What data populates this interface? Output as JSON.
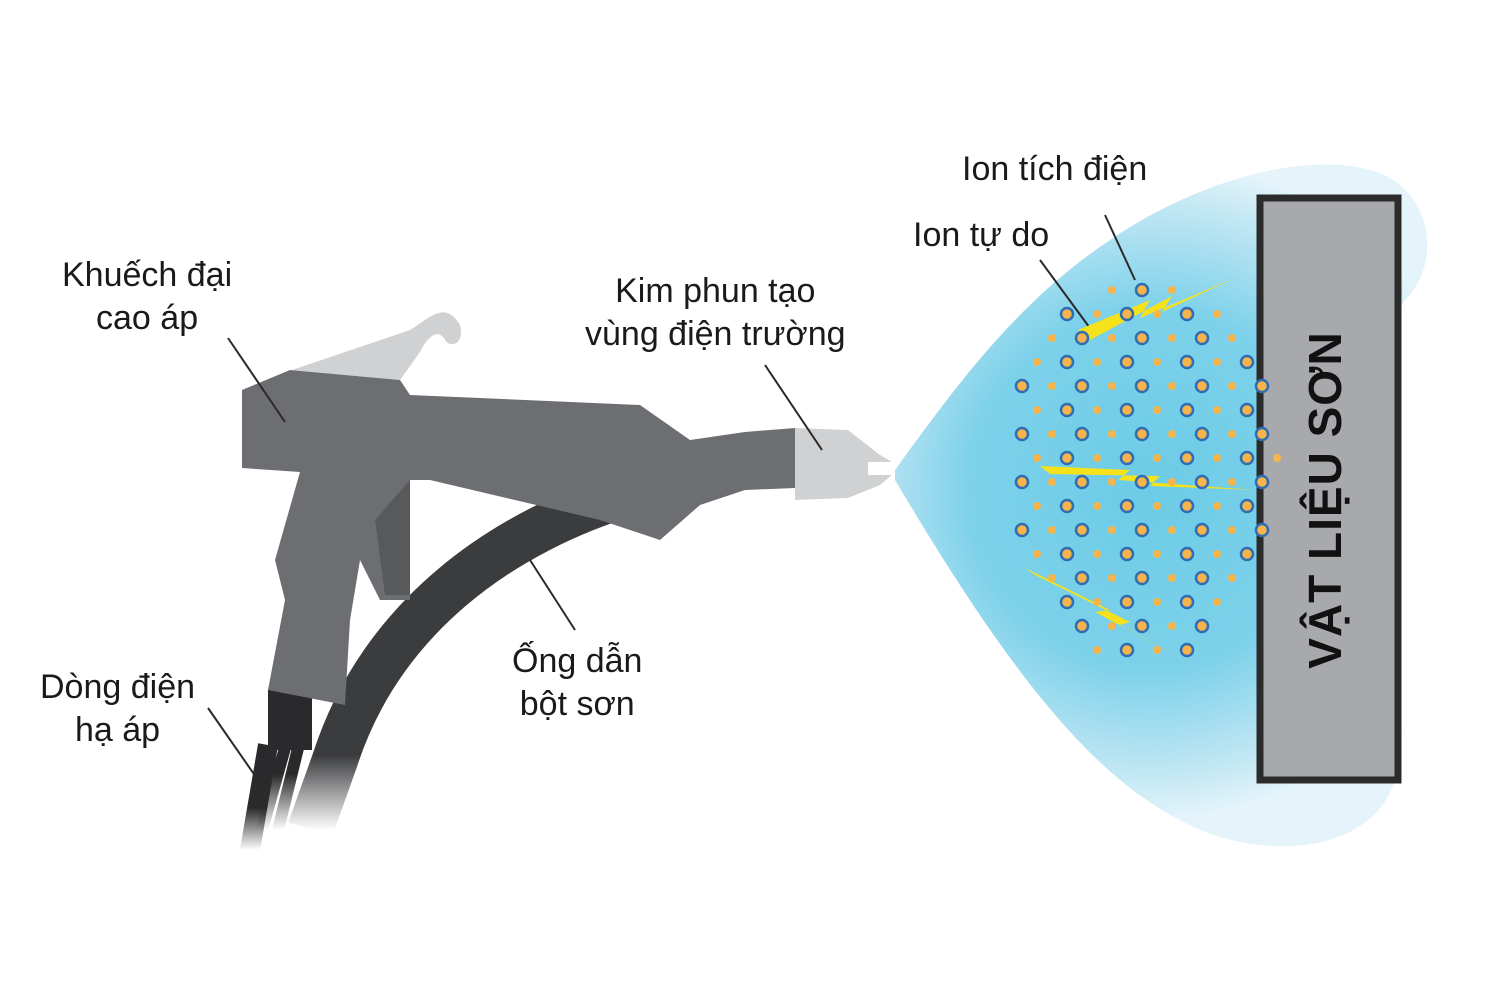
{
  "labels": {
    "amplifier": [
      "Khuếch đại",
      "cao áp"
    ],
    "needle": [
      "Kim phun tạo",
      "vùng điện trường"
    ],
    "charged_ion": "Ion tích điện",
    "free_ion": "Ion tự do",
    "powder_hose": [
      "Ống dẫn",
      "bột sơn"
    ],
    "low_voltage": [
      "Dòng điện",
      "hạ áp"
    ],
    "target": "VẬT LIỆU SƠN"
  },
  "colors": {
    "gun_body": "#6d6e71",
    "nozzle": "#cfd1d2",
    "hose": "#3b3c3e",
    "spray_cloud": "#6ccbe6",
    "target_fill": "#a7a9ac",
    "target_border": "#2b2b2b",
    "charged_ion_ring": "#2f6db5",
    "charged_ion_fill": "#f6b44a",
    "free_ion": "#f6b44a",
    "spark": "#f5e21b"
  },
  "icons": {
    "gun": "spray-gun-icon",
    "spark": "lightning-bolt-icon"
  }
}
